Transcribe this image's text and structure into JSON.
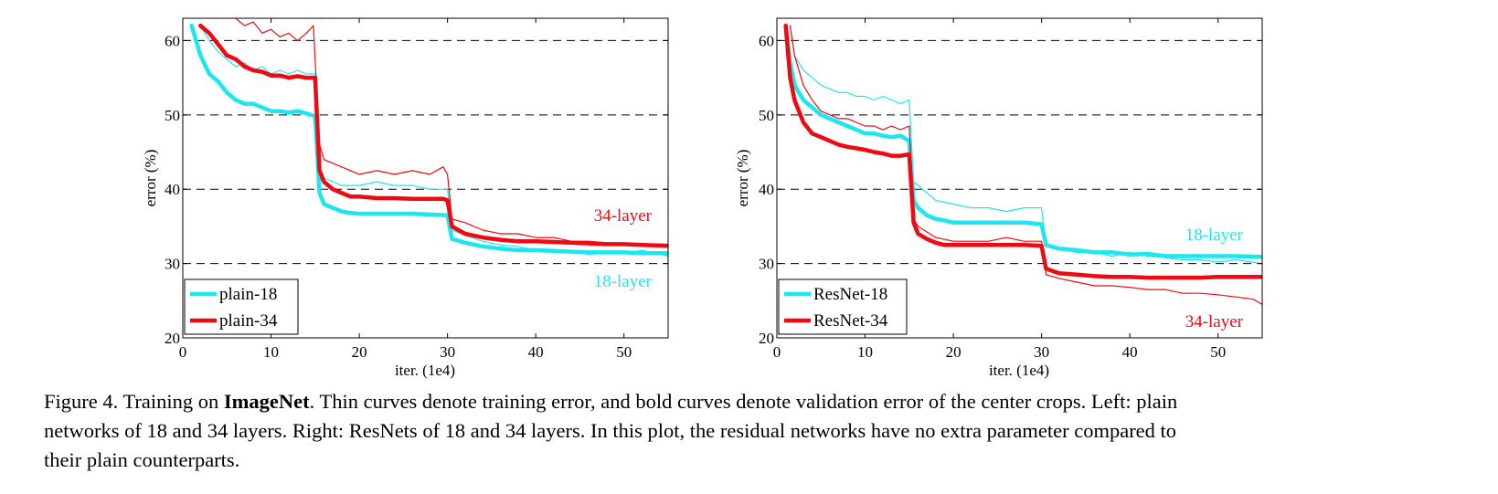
{
  "colors": {
    "cyan": "#1ee6f0",
    "red": "#ee0a10",
    "axis": "#000000",
    "grid": "#000000"
  },
  "chart_data": [
    {
      "type": "line",
      "panel": "left",
      "xlabel": "iter. (1e4)",
      "ylabel": "error (%)",
      "xlim": [
        0,
        55
      ],
      "ylim": [
        20,
        63
      ],
      "xticks": [
        0,
        10,
        20,
        30,
        40,
        50
      ],
      "yticks": [
        20,
        30,
        40,
        50,
        60
      ],
      "grid": "horizontal dashed at 30, 40, 50, 60",
      "legend_position": "bottom-left",
      "legend": [
        "plain-18",
        "plain-34"
      ],
      "annotations": [
        {
          "text": "34-layer",
          "color": "red"
        },
        {
          "text": "18-layer",
          "color": "cyan"
        }
      ],
      "series": [
        {
          "name": "plain-18",
          "kind": "validation",
          "color": "cyan",
          "x": [
            1,
            2,
            3,
            4,
            5,
            6,
            7,
            8,
            9,
            10,
            11,
            12,
            13,
            14,
            15,
            15.5,
            16,
            17,
            18,
            19,
            20,
            22,
            24,
            26,
            28,
            30,
            30.5,
            32,
            34,
            36,
            38,
            40,
            42,
            44,
            46,
            48,
            50,
            52,
            55
          ],
          "y": [
            62,
            58,
            55.5,
            54.5,
            53,
            52,
            51.5,
            51.5,
            51,
            50.5,
            50.5,
            50.3,
            50.5,
            50.2,
            49.8,
            39.5,
            38,
            37.5,
            37,
            36.8,
            36.7,
            36.7,
            36.7,
            36.7,
            36.6,
            36.5,
            33.3,
            32.8,
            32.3,
            32,
            31.8,
            31.8,
            31.7,
            31.6,
            31.5,
            31.5,
            31.5,
            31.4,
            31.4
          ]
        },
        {
          "name": "plain-18",
          "kind": "training",
          "color": "cyan",
          "x": [
            2,
            3,
            4,
            5,
            6,
            7,
            8,
            9,
            10,
            11,
            12,
            13,
            14,
            15,
            15.5,
            16,
            18,
            20,
            22,
            24,
            26,
            28,
            30,
            30.5,
            32,
            34,
            36,
            38,
            40,
            42,
            44,
            46,
            48,
            50,
            52,
            55
          ],
          "y": [
            62,
            60,
            58.5,
            57.5,
            56.5,
            57,
            56,
            56.5,
            55.5,
            56,
            55.5,
            56,
            55.5,
            55.5,
            42,
            41.5,
            40.5,
            40.5,
            41,
            40.5,
            40.5,
            40,
            40,
            34.5,
            33.8,
            33,
            32.5,
            32.3,
            31.8,
            31.5,
            31.8,
            31.2,
            31.5,
            31.3,
            31.8,
            31
          ]
        },
        {
          "name": "plain-34",
          "kind": "validation",
          "color": "red",
          "x": [
            2,
            3,
            4,
            5,
            6,
            7,
            8,
            9,
            10,
            11,
            12,
            13,
            14,
            15,
            15.5,
            16,
            17,
            18,
            19,
            20,
            22,
            24,
            26,
            28,
            29.5,
            30,
            30.5,
            32,
            34,
            36,
            38,
            40,
            42,
            44,
            46,
            48,
            50,
            52,
            55
          ],
          "y": [
            62,
            61,
            59.5,
            58,
            57.5,
            56.5,
            56,
            55.8,
            55.3,
            55.3,
            55,
            55.2,
            55,
            55,
            42.5,
            41,
            40,
            39.5,
            39,
            39,
            38.8,
            38.8,
            38.7,
            38.7,
            38.7,
            38.5,
            35,
            34,
            33.5,
            33.2,
            33,
            33,
            32.9,
            32.8,
            32.7,
            32.6,
            32.6,
            32.5,
            32.4
          ]
        },
        {
          "name": "plain-34",
          "kind": "training",
          "color": "red",
          "x": [
            6,
            7,
            8,
            9,
            10,
            11,
            12,
            13,
            14,
            14.8,
            15.5,
            16,
            18,
            20,
            22,
            24,
            26,
            28,
            29.5,
            30,
            30.5,
            32,
            34,
            36,
            38,
            40,
            42,
            44,
            46,
            48,
            50,
            52,
            55
          ],
          "y": [
            63,
            62,
            62.5,
            61,
            61.5,
            60.5,
            61,
            60,
            61,
            62,
            46,
            44,
            43,
            42,
            42.5,
            42,
            42.5,
            42,
            43,
            42,
            36,
            35.5,
            34.5,
            34,
            34,
            33.5,
            33.5,
            33,
            33,
            32.8,
            32.7,
            32.5,
            32.3
          ]
        }
      ]
    },
    {
      "type": "line",
      "panel": "right",
      "xlabel": "iter. (1e4)",
      "ylabel": "error (%)",
      "xlim": [
        0,
        55
      ],
      "ylim": [
        20,
        63
      ],
      "xticks": [
        0,
        10,
        20,
        30,
        40,
        50
      ],
      "yticks": [
        20,
        30,
        40,
        50,
        60
      ],
      "grid": "horizontal dashed at 30, 40, 50, 60",
      "legend_position": "bottom-left",
      "legend": [
        "ResNet-18",
        "ResNet-34"
      ],
      "annotations": [
        {
          "text": "18-layer",
          "color": "cyan"
        },
        {
          "text": "34-layer",
          "color": "red"
        }
      ],
      "series": [
        {
          "name": "ResNet-18",
          "kind": "validation",
          "color": "cyan",
          "x": [
            1,
            1.5,
            2,
            3,
            4,
            5,
            6,
            7,
            8,
            9,
            10,
            11,
            12,
            13,
            14,
            15,
            15.5,
            16,
            17,
            18,
            19,
            20,
            22,
            24,
            26,
            28,
            30,
            30.5,
            32,
            34,
            36,
            38,
            40,
            42,
            44,
            46,
            48,
            50,
            52,
            55
          ],
          "y": [
            62,
            57,
            54,
            52,
            51,
            50,
            49.5,
            49,
            48.5,
            48,
            47.5,
            47.5,
            47.2,
            47,
            47.2,
            46.5,
            38.5,
            37.5,
            36.5,
            36,
            35.8,
            35.5,
            35.5,
            35.5,
            35.5,
            35.5,
            35.3,
            32.5,
            32,
            31.8,
            31.5,
            31.5,
            31.2,
            31.3,
            31,
            31,
            31,
            31,
            31,
            30.9
          ]
        },
        {
          "name": "ResNet-18",
          "kind": "training",
          "color": "cyan",
          "x": [
            1.5,
            2,
            3,
            4,
            5,
            6,
            7,
            8,
            9,
            10,
            11,
            12,
            13,
            14,
            15,
            15.5,
            16,
            18,
            20,
            22,
            24,
            26,
            28,
            30,
            30.5,
            32,
            34,
            36,
            38,
            40,
            42,
            44,
            46,
            48,
            50,
            52,
            55
          ],
          "y": [
            62,
            58,
            56,
            55,
            54,
            53.5,
            53,
            53,
            52.5,
            52.5,
            52,
            52.5,
            52,
            51.5,
            52,
            41,
            40.5,
            38.5,
            38,
            37.5,
            37.5,
            37,
            37.5,
            37.5,
            32.5,
            32,
            31.5,
            31.5,
            31,
            31.5,
            31,
            30.8,
            30.5,
            30.5,
            30.2,
            30.5,
            30
          ]
        },
        {
          "name": "ResNet-34",
          "kind": "validation",
          "color": "red",
          "x": [
            1,
            1.5,
            2,
            3,
            4,
            5,
            6,
            7,
            8,
            9,
            10,
            11,
            12,
            13,
            14,
            15,
            15.5,
            16,
            17,
            18,
            19,
            20,
            22,
            24,
            26,
            28,
            30,
            30.5,
            32,
            34,
            36,
            38,
            40,
            42,
            44,
            46,
            48,
            50,
            52,
            55
          ],
          "y": [
            62,
            55,
            52,
            49,
            47.5,
            47,
            46.5,
            46,
            45.7,
            45.5,
            45.3,
            45,
            44.8,
            44.5,
            44.5,
            44.7,
            35.5,
            34,
            33.3,
            32.8,
            32.5,
            32.5,
            32.5,
            32.5,
            32.5,
            32.5,
            32.4,
            29.3,
            28.7,
            28.5,
            28.3,
            28.2,
            28.2,
            28.1,
            28.1,
            28.1,
            28.1,
            28.2,
            28.2,
            28.2
          ]
        },
        {
          "name": "ResNet-34",
          "kind": "training",
          "color": "red",
          "x": [
            1.5,
            2,
            3,
            4,
            5,
            6,
            7,
            8,
            9,
            10,
            11,
            12,
            13,
            14,
            15,
            15.5,
            16,
            18,
            20,
            22,
            24,
            26,
            28,
            30,
            30.5,
            32,
            34,
            36,
            38,
            40,
            42,
            44,
            46,
            48,
            50,
            52,
            54,
            55
          ],
          "y": [
            62,
            58,
            54,
            52,
            50.5,
            50,
            49.5,
            49.5,
            49,
            48.5,
            48.5,
            48,
            48.5,
            48,
            48.5,
            36,
            35,
            33.5,
            33,
            33,
            33,
            33.5,
            33,
            33,
            28.5,
            28,
            27.5,
            27,
            27,
            26.8,
            26.5,
            26.5,
            26,
            26,
            25.8,
            25.5,
            25.2,
            24.5
          ]
        }
      ]
    }
  ],
  "caption": {
    "prefix": "Figure 4. Training on ",
    "bold": "ImageNet",
    "line1_rest": ". Thin curves denote training error, and bold curves denote validation error of the center crops. Left: plain",
    "line2": "networks of 18 and 34 layers. Right: ResNets of 18 and 34 layers. In this plot, the residual networks have no extra parameter compared to",
    "line3": "their plain counterparts."
  }
}
